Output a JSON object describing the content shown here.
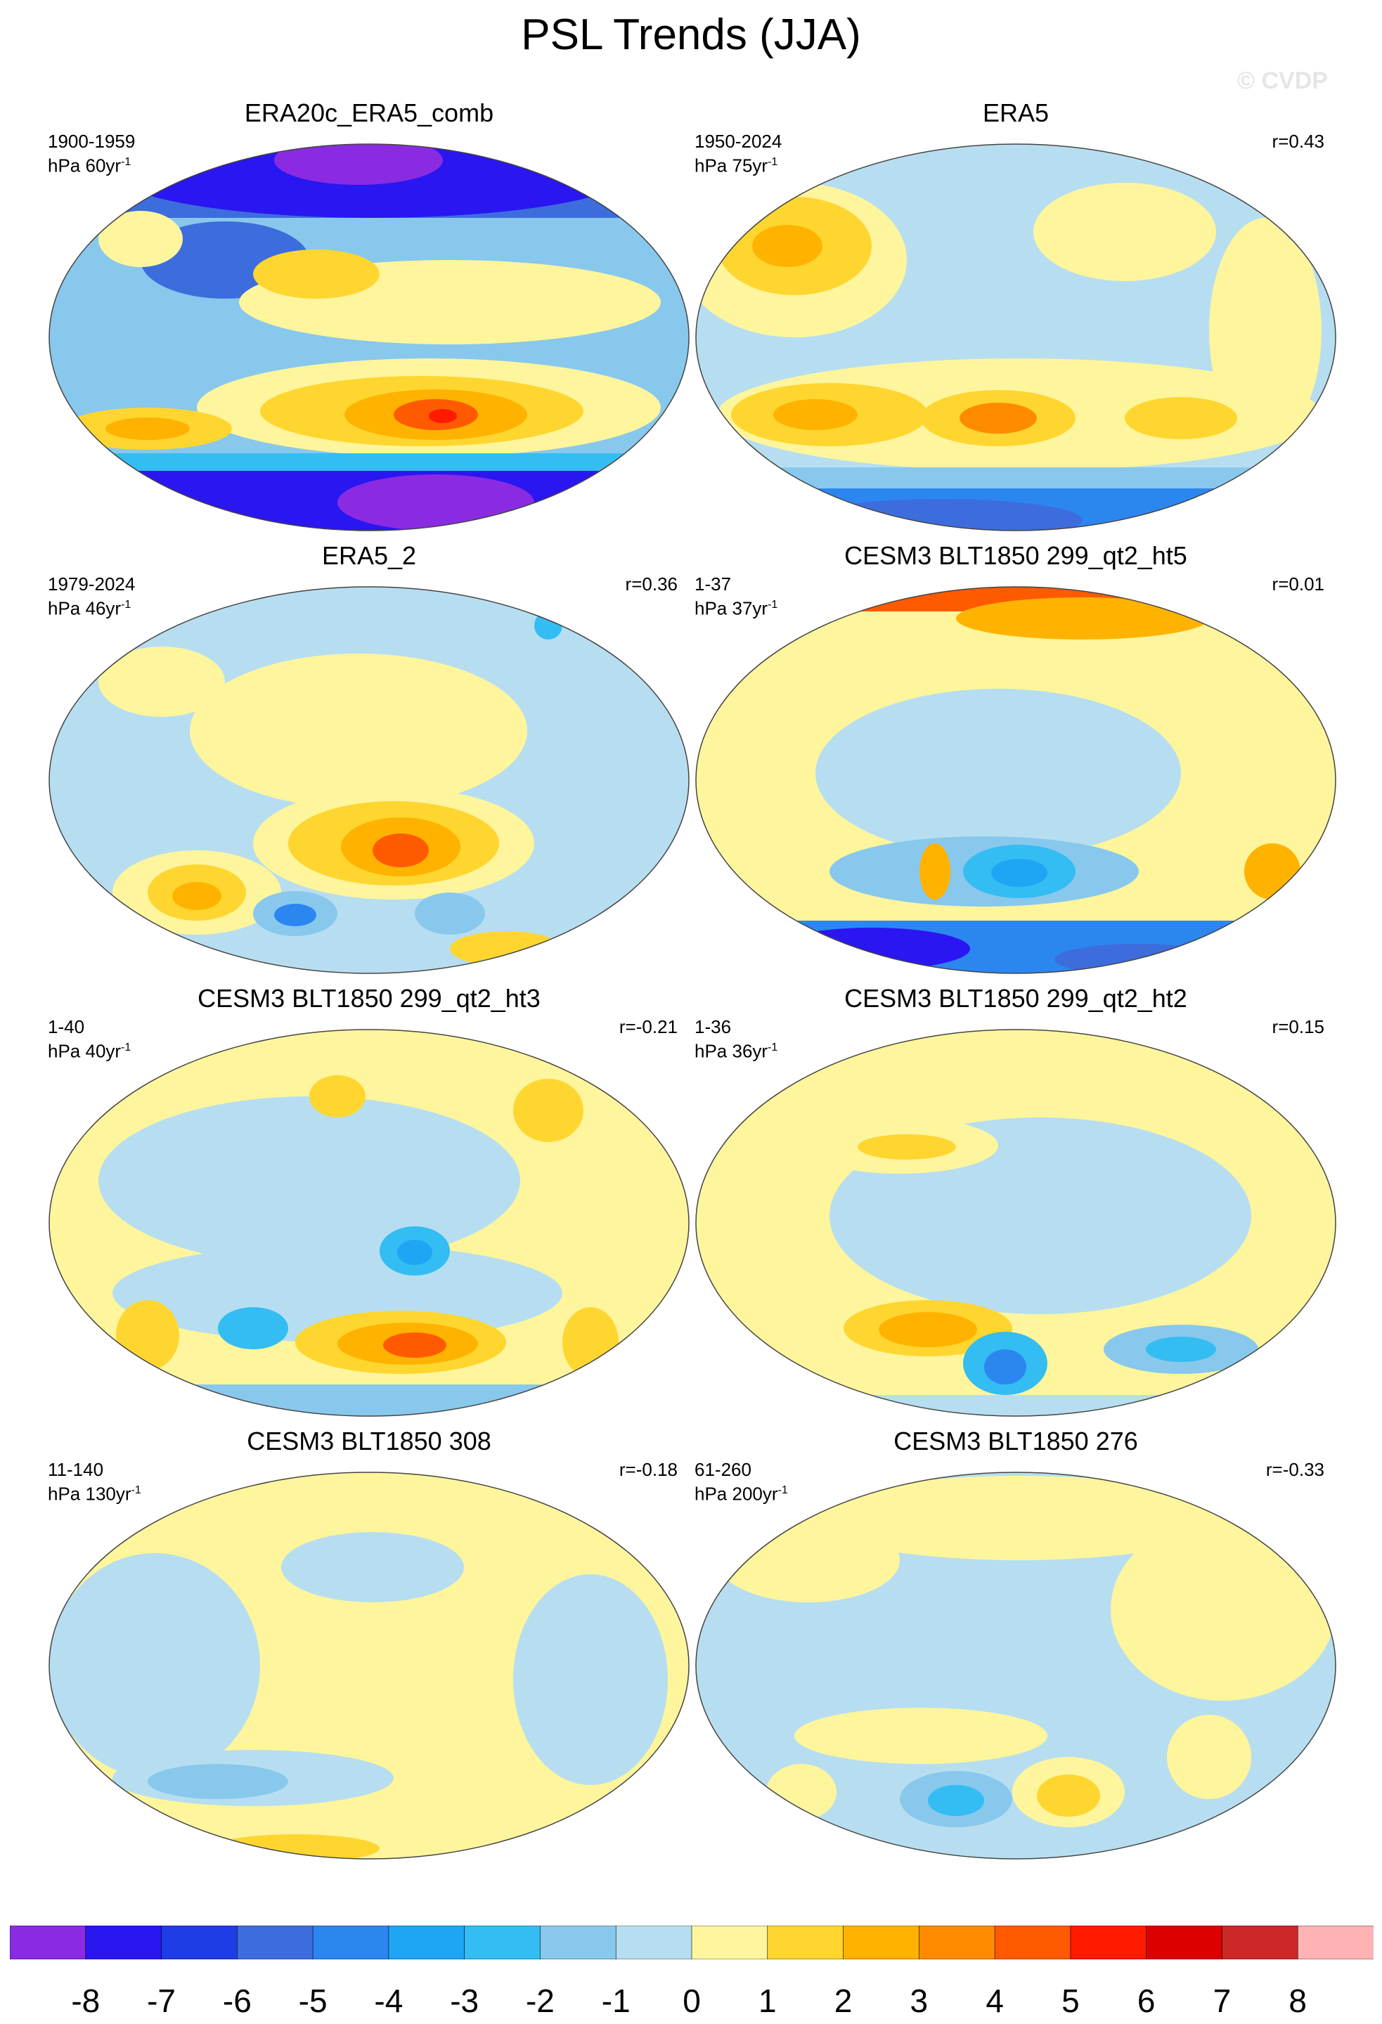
{
  "title": "PSL Trends (JJA)",
  "watermark": "© CVDP",
  "colorbar": {
    "colors": [
      "#8a2be2",
      "#2a16f0",
      "#1f3de6",
      "#3d6ddc",
      "#2c86f0",
      "#1ea6f5",
      "#33bdf2",
      "#88c8ec",
      "#b7def0",
      "#fff59d",
      "#ffd630",
      "#ffb300",
      "#ff8c00",
      "#ff5a00",
      "#ff1a00",
      "#dd0000",
      "#cc2828",
      "#ffb3b3"
    ],
    "labels": [
      "-8",
      "-7",
      "-6",
      "-5",
      "-4",
      "-3",
      "-2",
      "-1",
      "0",
      "1",
      "2",
      "3",
      "4",
      "5",
      "6",
      "7",
      "8"
    ]
  },
  "panels": [
    {
      "title": "ERA20c_ERA5_comb",
      "period": "1900-1959",
      "units": "hPa 60yr",
      "units_sup": "-1",
      "corr": ""
    },
    {
      "title": "ERA5",
      "period": "1950-2024",
      "units": "hPa 75yr",
      "units_sup": "-1",
      "corr": "r=0.43"
    },
    {
      "title": "ERA5_2",
      "period": "1979-2024",
      "units": "hPa 46yr",
      "units_sup": "-1",
      "corr": "r=0.36"
    },
    {
      "title": "CESM3 BLT1850 299_qt2_ht5",
      "period": "1-37",
      "units": "hPa 37yr",
      "units_sup": "-1",
      "corr": "r=0.01"
    },
    {
      "title": "CESM3 BLT1850 299_qt2_ht3",
      "period": "1-40",
      "units": "hPa 40yr",
      "units_sup": "-1",
      "corr": "r=-0.21"
    },
    {
      "title": "CESM3 BLT1850 299_qt2_ht2",
      "period": "1-36",
      "units": "hPa 36yr",
      "units_sup": "-1",
      "corr": "r=0.15"
    },
    {
      "title": "CESM3 BLT1850 308",
      "period": "11-140",
      "units": "hPa 130yr",
      "units_sup": "-1",
      "corr": "r=-0.18"
    },
    {
      "title": "CESM3 BLT1850 276",
      "period": "61-260",
      "units": "hPa 200yr",
      "units_sup": "-1",
      "corr": "r=-0.33"
    }
  ]
}
